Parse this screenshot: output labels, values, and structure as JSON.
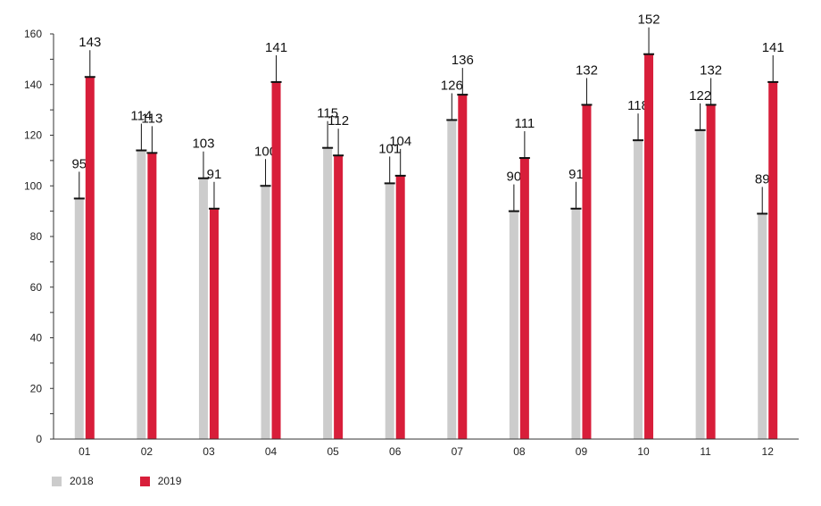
{
  "chart_data": {
    "type": "bar",
    "categories": [
      "01",
      "02",
      "03",
      "04",
      "05",
      "06",
      "07",
      "08",
      "09",
      "10",
      "11",
      "12"
    ],
    "series": [
      {
        "name": "2018",
        "color": "#cccccc",
        "values": [
          95,
          114,
          103,
          100,
          115,
          101,
          126,
          90,
          91,
          118,
          122,
          89
        ]
      },
      {
        "name": "2019",
        "color": "#d81e3a",
        "values": [
          143,
          113,
          91,
          141,
          112,
          104,
          136,
          111,
          132,
          152,
          132,
          141
        ]
      }
    ],
    "y_ticks": [
      "0",
      "20",
      "40",
      "60",
      "80",
      "100",
      "120",
      "140",
      "160"
    ],
    "ylim": [
      0,
      160
    ],
    "grid": false,
    "legend": "bottom-left"
  }
}
